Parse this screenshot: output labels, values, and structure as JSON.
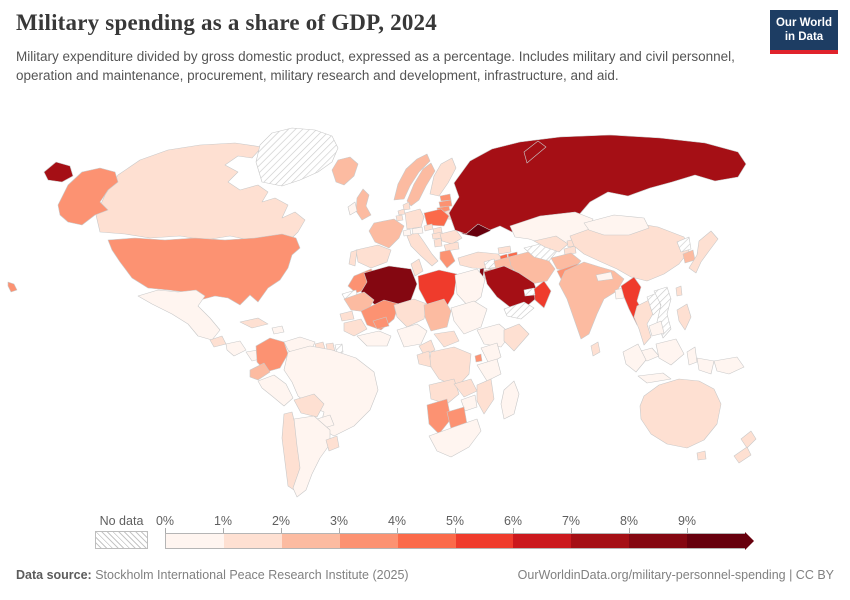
{
  "header": {
    "title": "Military spending as a share of GDP, 2024",
    "subtitle": "Military expenditure divided by gross domestic product, expressed as a percentage. Includes military and civil personnel, operation and maintenance, procurement, military research and development, infrastructure, and aid.",
    "logo": {
      "line1": "Our World",
      "line2": "in Data",
      "bg_color": "#1d3d63",
      "accent_color": "#e0232c"
    }
  },
  "chart_data": {
    "type": "heatmap",
    "subtype": "choropleth-world-map",
    "title": "Military spending as a share of GDP, 2024",
    "unit": "%",
    "legend_position": "bottom",
    "no_data_label": "No data",
    "legend_ticks": [
      "0%",
      "1%",
      "2%",
      "3%",
      "4%",
      "5%",
      "6%",
      "7%",
      "8%",
      "9%"
    ],
    "bins": [
      {
        "range": "0-1%",
        "color": "#fff5f0"
      },
      {
        "range": "1-2%",
        "color": "#fee0d2"
      },
      {
        "range": "2-3%",
        "color": "#fcbba1"
      },
      {
        "range": "3-4%",
        "color": "#fc9272"
      },
      {
        "range": "4-5%",
        "color": "#fb6a4a"
      },
      {
        "range": "5-6%",
        "color": "#ef3b2c"
      },
      {
        "range": "6-7%",
        "color": "#cb181d"
      },
      {
        "range": "7-8%",
        "color": "#a50f15"
      },
      {
        "range": "8-9%",
        "color": "#840711"
      },
      {
        "range": "9%+",
        "color": "#67000d"
      }
    ],
    "ocean_color": "#ffffff",
    "border_color": "#c9c9c9",
    "countries": [
      {
        "id": "united-states",
        "name": "United States",
        "bin": 3
      },
      {
        "id": "canada",
        "name": "Canada",
        "bin": 1
      },
      {
        "id": "greenland",
        "name": "Greenland",
        "bin": null
      },
      {
        "id": "iceland",
        "name": "Iceland",
        "bin": 2
      },
      {
        "id": "mexico",
        "name": "Mexico",
        "bin": 0
      },
      {
        "id": "guatemala",
        "name": "Guatemala",
        "bin": 1
      },
      {
        "id": "honduras-nicaragua",
        "name": "Honduras & Nicaragua",
        "bin": 0
      },
      {
        "id": "panama-costa-rica",
        "name": "Panama & Costa Rica",
        "bin": 0
      },
      {
        "id": "cuba",
        "name": "Cuba",
        "bin": 1
      },
      {
        "id": "hispaniola",
        "name": "Haiti & Dominican Republic",
        "bin": 0
      },
      {
        "id": "colombia",
        "name": "Colombia",
        "bin": 3
      },
      {
        "id": "venezuela",
        "name": "Venezuela",
        "bin": 0
      },
      {
        "id": "guyana",
        "name": "Guyana",
        "bin": 1
      },
      {
        "id": "suriname",
        "name": "Suriname",
        "bin": 1
      },
      {
        "id": "french-guiana",
        "name": "French Guiana",
        "bin": null
      },
      {
        "id": "ecuador",
        "name": "Ecuador",
        "bin": 2
      },
      {
        "id": "peru",
        "name": "Peru",
        "bin": 0
      },
      {
        "id": "brazil",
        "name": "Brazil",
        "bin": 0
      },
      {
        "id": "bolivia",
        "name": "Bolivia",
        "bin": 1
      },
      {
        "id": "paraguay",
        "name": "Paraguay",
        "bin": 0
      },
      {
        "id": "chile",
        "name": "Chile",
        "bin": 1
      },
      {
        "id": "argentina",
        "name": "Argentina",
        "bin": 0
      },
      {
        "id": "uruguay",
        "name": "Uruguay",
        "bin": 1
      },
      {
        "id": "united-kingdom",
        "name": "United Kingdom",
        "bin": 2
      },
      {
        "id": "ireland",
        "name": "Ireland",
        "bin": 0
      },
      {
        "id": "norway",
        "name": "Norway",
        "bin": 2
      },
      {
        "id": "sweden",
        "name": "Sweden",
        "bin": 2
      },
      {
        "id": "finland",
        "name": "Finland",
        "bin": 1
      },
      {
        "id": "denmark",
        "name": "Denmark",
        "bin": 1
      },
      {
        "id": "estonia",
        "name": "Estonia",
        "bin": 3
      },
      {
        "id": "latvia",
        "name": "Latvia",
        "bin": 3
      },
      {
        "id": "lithuania",
        "name": "Lithuania",
        "bin": 3
      },
      {
        "id": "belarus",
        "name": "Belarus",
        "bin": 1
      },
      {
        "id": "poland",
        "name": "Poland",
        "bin": 4
      },
      {
        "id": "germany",
        "name": "Germany",
        "bin": 1
      },
      {
        "id": "netherlands",
        "name": "Netherlands",
        "bin": 1
      },
      {
        "id": "belgium",
        "name": "Belgium",
        "bin": 1
      },
      {
        "id": "france",
        "name": "France",
        "bin": 2
      },
      {
        "id": "spain",
        "name": "Spain",
        "bin": 1
      },
      {
        "id": "portugal",
        "name": "Portugal",
        "bin": 1
      },
      {
        "id": "italy",
        "name": "Italy",
        "bin": 1
      },
      {
        "id": "switzerland",
        "name": "Switzerland",
        "bin": 0
      },
      {
        "id": "austria",
        "name": "Austria",
        "bin": 0
      },
      {
        "id": "czechia",
        "name": "Czechia",
        "bin": 1
      },
      {
        "id": "slovakia",
        "name": "Slovakia",
        "bin": 1
      },
      {
        "id": "hungary",
        "name": "Hungary",
        "bin": 1
      },
      {
        "id": "romania",
        "name": "Romania",
        "bin": 1
      },
      {
        "id": "serbia",
        "name": "Serbia",
        "bin": 1
      },
      {
        "id": "bulgaria",
        "name": "Bulgaria",
        "bin": 1
      },
      {
        "id": "greece",
        "name": "Greece",
        "bin": 3
      },
      {
        "id": "ukraine",
        "name": "Ukraine",
        "bin": 9
      },
      {
        "id": "russia",
        "name": "Russia",
        "bin": 7
      },
      {
        "id": "turkey",
        "name": "Turkey",
        "bin": 1
      },
      {
        "id": "georgia",
        "name": "Georgia",
        "bin": 1
      },
      {
        "id": "armenia",
        "name": "Armenia",
        "bin": 4
      },
      {
        "id": "azerbaijan",
        "name": "Azerbaijan",
        "bin": 4
      },
      {
        "id": "syria",
        "name": "Syria",
        "bin": null
      },
      {
        "id": "israel",
        "name": "Israel",
        "bin": 8
      },
      {
        "id": "jordan",
        "name": "Jordan",
        "bin": 4
      },
      {
        "id": "iraq",
        "name": "Iraq",
        "bin": 2
      },
      {
        "id": "iran",
        "name": "Iran",
        "bin": 2
      },
      {
        "id": "kuwait",
        "name": "Kuwait",
        "bin": 5
      },
      {
        "id": "saudi-arabia",
        "name": "Saudi Arabia",
        "bin": 7
      },
      {
        "id": "yemen",
        "name": "Yemen",
        "bin": null
      },
      {
        "id": "oman",
        "name": "Oman",
        "bin": 5
      },
      {
        "id": "united-arab-emirates",
        "name": "United Arab Emirates",
        "bin": null
      },
      {
        "id": "kazakhstan",
        "name": "Kazakhstan",
        "bin": 0
      },
      {
        "id": "turkmenistan",
        "name": "Turkmenistan",
        "bin": null
      },
      {
        "id": "uzbekistan",
        "name": "Uzbekistan",
        "bin": 1
      },
      {
        "id": "kyrgyzstan",
        "name": "Kyrgyzstan",
        "bin": 1
      },
      {
        "id": "tajikistan",
        "name": "Tajikistan",
        "bin": 1
      },
      {
        "id": "afghanistan",
        "name": "Afghanistan",
        "bin": 2
      },
      {
        "id": "pakistan",
        "name": "Pakistan",
        "bin": 3
      },
      {
        "id": "india",
        "name": "India",
        "bin": 2
      },
      {
        "id": "nepal",
        "name": "Nepal",
        "bin": 0
      },
      {
        "id": "bangladesh",
        "name": "Bangladesh",
        "bin": 0
      },
      {
        "id": "sri-lanka",
        "name": "Sri Lanka",
        "bin": 1
      },
      {
        "id": "china",
        "name": "China",
        "bin": 1
      },
      {
        "id": "mongolia",
        "name": "Mongolia",
        "bin": 0
      },
      {
        "id": "north-korea",
        "name": "North Korea",
        "bin": null
      },
      {
        "id": "south-korea",
        "name": "South Korea",
        "bin": 2
      },
      {
        "id": "japan",
        "name": "Japan",
        "bin": 1
      },
      {
        "id": "taiwan",
        "name": "Taiwan",
        "bin": 1
      },
      {
        "id": "myanmar",
        "name": "Myanmar",
        "bin": 5
      },
      {
        "id": "thailand",
        "name": "Thailand",
        "bin": 1
      },
      {
        "id": "laos",
        "name": "Laos",
        "bin": null
      },
      {
        "id": "vietnam",
        "name": "Vietnam",
        "bin": null
      },
      {
        "id": "cambodia",
        "name": "Cambodia",
        "bin": 0
      },
      {
        "id": "malaysia",
        "name": "Malaysia",
        "bin": 0
      },
      {
        "id": "brunei",
        "name": "Brunei",
        "bin": 3
      },
      {
        "id": "indonesia",
        "name": "Indonesia",
        "bin": 0
      },
      {
        "id": "philippines",
        "name": "Philippines",
        "bin": 1
      },
      {
        "id": "papua-new-guinea",
        "name": "Papua New Guinea",
        "bin": 0
      },
      {
        "id": "australia",
        "name": "Australia",
        "bin": 1
      },
      {
        "id": "new-zealand",
        "name": "New Zealand",
        "bin": 1
      },
      {
        "id": "morocco",
        "name": "Morocco",
        "bin": 3
      },
      {
        "id": "western-sahara",
        "name": "Western Sahara",
        "bin": null
      },
      {
        "id": "algeria",
        "name": "Algeria",
        "bin": 8
      },
      {
        "id": "tunisia",
        "name": "Tunisia",
        "bin": 1
      },
      {
        "id": "libya",
        "name": "Libya",
        "bin": 5
      },
      {
        "id": "egypt",
        "name": "Egypt",
        "bin": 0
      },
      {
        "id": "mauritania",
        "name": "Mauritania",
        "bin": 2
      },
      {
        "id": "mali",
        "name": "Mali",
        "bin": 3
      },
      {
        "id": "senegal",
        "name": "Senegal",
        "bin": 1
      },
      {
        "id": "guinea",
        "name": "Guinea",
        "bin": 1
      },
      {
        "id": "burkina-faso",
        "name": "Burkina Faso",
        "bin": 3
      },
      {
        "id": "ivory-coast-ghana",
        "name": "Cote d'Ivoire & Ghana",
        "bin": 0
      },
      {
        "id": "niger",
        "name": "Niger",
        "bin": 1
      },
      {
        "id": "chad",
        "name": "Chad",
        "bin": 2
      },
      {
        "id": "sudan",
        "name": "Sudan",
        "bin": 0
      },
      {
        "id": "nigeria",
        "name": "Nigeria",
        "bin": 0
      },
      {
        "id": "cameroon",
        "name": "Cameroon",
        "bin": 1
      },
      {
        "id": "central-african-republic",
        "name": "Central African Republic",
        "bin": 1
      },
      {
        "id": "ethiopia",
        "name": "Ethiopia",
        "bin": 0
      },
      {
        "id": "somalia",
        "name": "Somalia",
        "bin": 1
      },
      {
        "id": "kenya",
        "name": "Kenya",
        "bin": 0
      },
      {
        "id": "burundi",
        "name": "Burundi",
        "bin": 3
      },
      {
        "id": "drc",
        "name": "Democratic Republic of Congo",
        "bin": 1
      },
      {
        "id": "congo-gabon",
        "name": "Congo & Gabon",
        "bin": 1
      },
      {
        "id": "tanzania",
        "name": "Tanzania",
        "bin": 0
      },
      {
        "id": "angola",
        "name": "Angola",
        "bin": 1
      },
      {
        "id": "zambia",
        "name": "Zambia",
        "bin": 1
      },
      {
        "id": "mozambique",
        "name": "Mozambique",
        "bin": 1
      },
      {
        "id": "zimbabwe",
        "name": "Zimbabwe",
        "bin": 0
      },
      {
        "id": "namibia",
        "name": "Namibia",
        "bin": 3
      },
      {
        "id": "botswana",
        "name": "Botswana",
        "bin": 3
      },
      {
        "id": "south-africa",
        "name": "South Africa",
        "bin": 0
      },
      {
        "id": "madagascar",
        "name": "Madagascar",
        "bin": 0
      }
    ]
  },
  "footer": {
    "datasource_label": "Data source:",
    "datasource": "Stockholm International Peace Research Institute (2025)",
    "link": "OurWorldinData.org/military-personnel-spending | CC BY"
  }
}
